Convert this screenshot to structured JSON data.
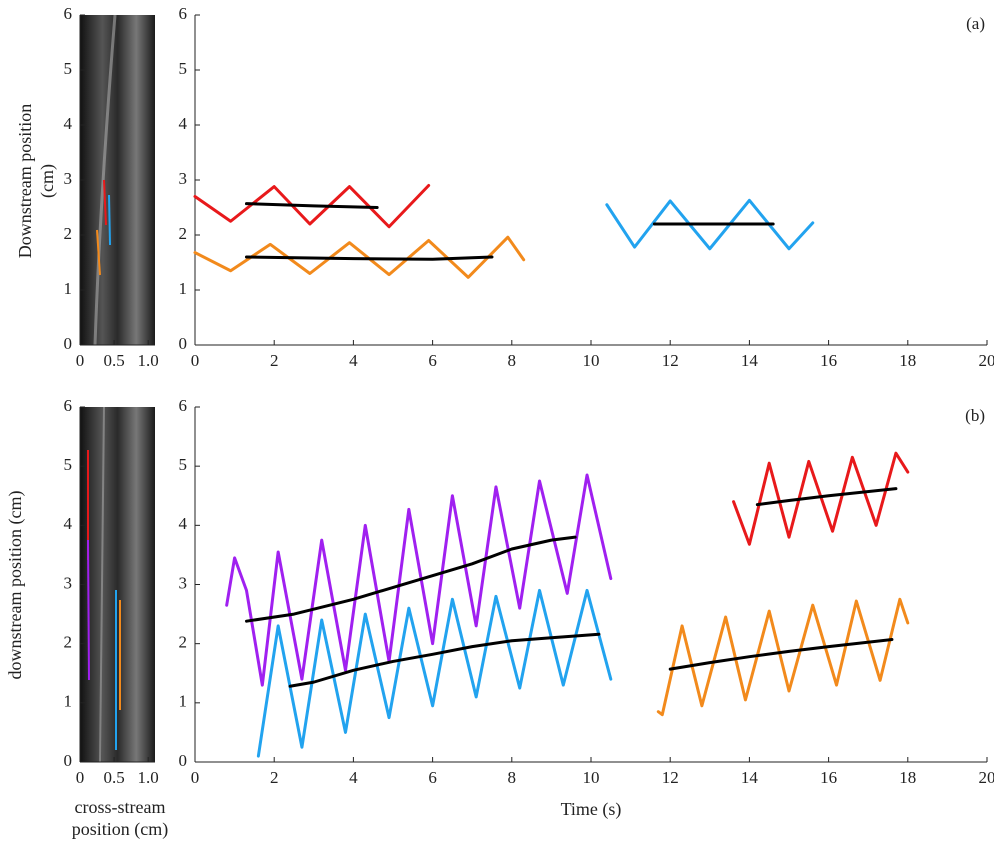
{
  "chart_data": [
    {
      "type": "image",
      "y_label": "Downstream position (cm)",
      "xlim": [
        0,
        1.1
      ],
      "xticks": [
        0,
        0.5,
        {
          "value": 1,
          "label": "1.0"
        }
      ],
      "ylim": [
        0,
        6
      ],
      "yticks": [
        0,
        1,
        2,
        3,
        4,
        5,
        6
      ]
    },
    {
      "type": "line",
      "annotation": "(a)",
      "xlim": [
        0,
        20
      ],
      "xticks": [
        0,
        2,
        4,
        6,
        8,
        10,
        12,
        14,
        16,
        18,
        20
      ],
      "ylim": [
        0,
        6
      ],
      "yticks": [
        0,
        1,
        2,
        3,
        4,
        5,
        6
      ],
      "series": [
        {
          "color": "#e8191b",
          "x": [
            0,
            0.9,
            2.0,
            2.9,
            3.9,
            4.9,
            5.9
          ],
          "values": [
            2.7,
            2.25,
            2.88,
            2.2,
            2.88,
            2.15,
            2.9
          ]
        },
        {
          "color": "#000000",
          "x": [
            1.3,
            3,
            4.6
          ],
          "values": [
            2.57,
            2.53,
            2.5
          ]
        },
        {
          "color": "#f28a1c",
          "x": [
            0,
            0.9,
            1.9,
            2.9,
            3.9,
            4.9,
            5.9,
            6.9,
            7.9,
            8.3
          ],
          "values": [
            1.68,
            1.35,
            1.83,
            1.3,
            1.86,
            1.28,
            1.9,
            1.23,
            1.96,
            1.55
          ]
        },
        {
          "color": "#000000",
          "x": [
            1.3,
            4,
            6,
            7.5
          ],
          "values": [
            1.6,
            1.57,
            1.56,
            1.6
          ]
        },
        {
          "color": "#22a3ef",
          "x": [
            10.4,
            11.1,
            12.0,
            13.0,
            14.0,
            15.0,
            15.6
          ],
          "values": [
            2.55,
            1.78,
            2.62,
            1.75,
            2.63,
            1.75,
            2.22
          ]
        },
        {
          "color": "#000000",
          "x": [
            11.6,
            14.6
          ],
          "values": [
            2.2,
            2.2
          ]
        }
      ]
    },
    {
      "type": "image",
      "y_label": "downstream position (cm)",
      "x_label": "cross-stream position (cm)",
      "xlim": [
        0,
        1.1
      ],
      "xticks": [
        0,
        0.5,
        {
          "value": 1,
          "label": "1.0"
        }
      ],
      "ylim": [
        0,
        6
      ],
      "yticks": [
        0,
        1,
        2,
        3,
        4,
        5,
        6
      ]
    },
    {
      "type": "line",
      "annotation": "(b)",
      "x_label": "Time (s)",
      "xlim": [
        0,
        20
      ],
      "xticks": [
        0,
        2,
        4,
        6,
        8,
        10,
        12,
        14,
        16,
        18,
        20
      ],
      "ylim": [
        0,
        6
      ],
      "yticks": [
        0,
        1,
        2,
        3,
        4,
        5,
        6
      ],
      "series": [
        {
          "color": "#a020f0",
          "x": [
            0.8,
            1.0,
            1.3,
            1.7,
            2.1,
            2.7,
            3.2,
            3.8,
            4.3,
            4.9,
            5.4,
            6.0,
            6.5,
            7.1,
            7.6,
            8.2,
            8.7,
            9.4,
            9.9,
            10.5
          ],
          "values": [
            2.65,
            3.45,
            2.9,
            1.3,
            3.55,
            1.4,
            3.75,
            1.55,
            4.0,
            1.7,
            4.27,
            2.0,
            4.5,
            2.3,
            4.65,
            2.6,
            4.75,
            2.85,
            4.85,
            3.1
          ]
        },
        {
          "color": "#000000",
          "x": [
            1.3,
            2.5,
            4,
            5.5,
            7,
            8,
            9,
            9.6
          ],
          "values": [
            2.38,
            2.5,
            2.75,
            3.05,
            3.35,
            3.6,
            3.75,
            3.8
          ]
        },
        {
          "color": "#22a3ef",
          "x": [
            1.6,
            2.1,
            2.7,
            3.2,
            3.8,
            4.3,
            4.9,
            5.4,
            6.0,
            6.5,
            7.1,
            7.6,
            8.2,
            8.7,
            9.3,
            9.9,
            10.5
          ],
          "values": [
            0.1,
            2.3,
            0.25,
            2.4,
            0.5,
            2.5,
            0.75,
            2.6,
            0.95,
            2.75,
            1.1,
            2.8,
            1.25,
            2.9,
            1.3,
            2.9,
            1.4
          ]
        },
        {
          "color": "#000000",
          "x": [
            2.4,
            3,
            4,
            5,
            6,
            7,
            8,
            9,
            10.2
          ],
          "values": [
            1.28,
            1.35,
            1.55,
            1.7,
            1.82,
            1.95,
            2.05,
            2.1,
            2.16
          ]
        },
        {
          "color": "#e8191b",
          "x": [
            13.6,
            14.0,
            14.5,
            15.0,
            15.5,
            16.1,
            16.6,
            17.2,
            17.7,
            18.0
          ],
          "values": [
            4.4,
            3.68,
            5.05,
            3.8,
            5.08,
            3.9,
            5.15,
            4.0,
            5.22,
            4.9
          ]
        },
        {
          "color": "#000000",
          "x": [
            14.2,
            15,
            16,
            17.7
          ],
          "values": [
            4.35,
            4.42,
            4.5,
            4.62
          ]
        },
        {
          "color": "#f28a1c",
          "x": [
            11.7,
            11.8,
            12.3,
            12.8,
            13.4,
            13.9,
            14.5,
            15.0,
            15.6,
            16.2,
            16.7,
            17.3,
            17.8,
            18.0
          ],
          "values": [
            0.85,
            0.8,
            2.3,
            0.95,
            2.45,
            1.05,
            2.55,
            1.2,
            2.65,
            1.3,
            2.72,
            1.38,
            2.75,
            2.35
          ]
        },
        {
          "color": "#000000",
          "x": [
            12.0,
            13,
            14,
            15,
            16,
            17.6
          ],
          "values": [
            1.57,
            1.68,
            1.78,
            1.87,
            1.95,
            2.07
          ]
        }
      ]
    }
  ]
}
